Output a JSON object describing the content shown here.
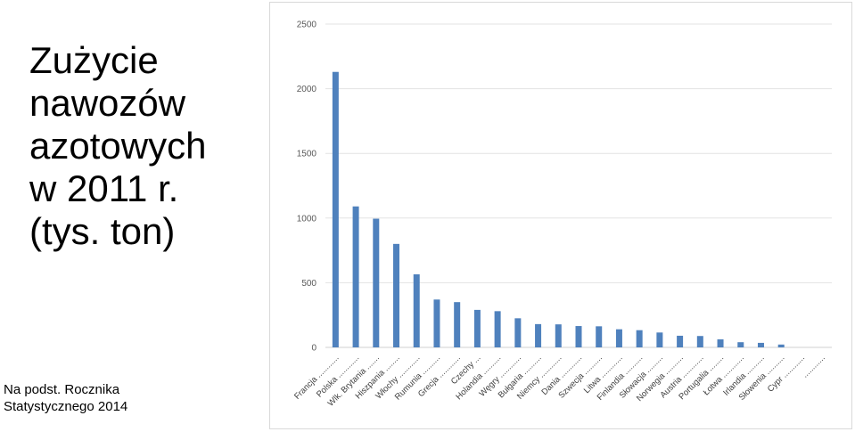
{
  "slide": {
    "title_lines": [
      "Zużycie",
      "nawozów",
      "azotowych",
      "w 2011 r.",
      "(tys. ton)"
    ],
    "source_lines": [
      "Na podst. Rocznika",
      "Statystycznego 2014"
    ]
  },
  "chart_data": {
    "type": "bar",
    "title": "",
    "xlabel": "",
    "ylabel": "",
    "ylim": [
      0,
      2500
    ],
    "yticks": [
      0,
      500,
      1000,
      1500,
      2000,
      2500
    ],
    "grid": true,
    "legend": "none",
    "bar_color": "#4f81bd",
    "categories": [
      "Francja ............",
      "Polska ............",
      "Wlk. Brytania .......",
      "Hiszpania ........",
      "Włochy ............",
      "Rumunia ..........",
      "Grecja ............",
      "Czechy ...",
      "Holandia ..........",
      "Węgry ............",
      "Bułgaria ..........",
      "Niemcy ............",
      "Dania ............",
      "Szwecja ..........",
      "Litwa ............",
      "Finlandia ..........",
      "Słowacja .........",
      "Norwegia ..........",
      "Austria ............",
      "Portugalia ........",
      "Łotwa ............",
      "Irlandia ..........",
      "Słowenia ..........",
      "Cypr ............",
      "............"
    ],
    "values": [
      2130,
      1090,
      995,
      800,
      565,
      370,
      350,
      290,
      280,
      225,
      180,
      178,
      165,
      163,
      140,
      133,
      115,
      90,
      88,
      62,
      40,
      35,
      22,
      0,
      0
    ]
  }
}
